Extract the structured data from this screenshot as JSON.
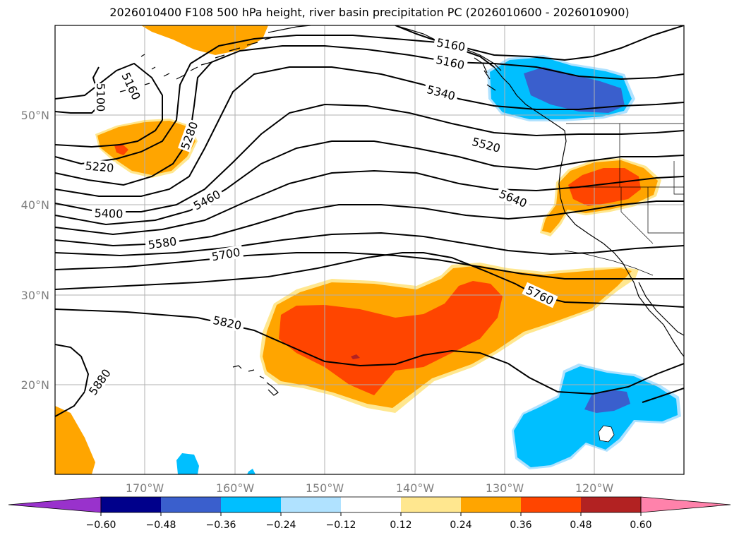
{
  "title": "2026010400 F108 500 hPa height, river basin precipitation PC (2026010600 - 2026010900)",
  "axes": {
    "lat_labels": [
      "50°N",
      "40°N",
      "30°N",
      "20°N"
    ],
    "lon_labels": [
      "170°W",
      "160°W",
      "150°W",
      "140°W",
      "130°W",
      "120°W"
    ]
  },
  "contour_labels": [
    "5100",
    "5160",
    "5160",
    "5160",
    "5220",
    "5280",
    "5340",
    "5400",
    "5460",
    "5520",
    "5580",
    "5640",
    "5700",
    "5760",
    "5820",
    "5880"
  ],
  "colorbar": {
    "ticks": [
      "−0.60",
      "−0.48",
      "−0.36",
      "−0.24",
      "−0.12",
      "0.12",
      "0.24",
      "0.36",
      "0.48",
      "0.60"
    ],
    "colors": [
      "#9932cc",
      "#00008b",
      "#3a5fcd",
      "#00bfff",
      "#b0e2ff",
      "#ffffff",
      "#ffe78f",
      "#ffa500",
      "#ff4500",
      "#b22222",
      "#ff82ab"
    ]
  },
  "colors": {
    "positive_0_24": "#ffa500",
    "positive_0_36": "#ff4500",
    "negative_0_24": "#00bfff",
    "negative_0_36": "#3a5fcd",
    "light_positive": "#ffe78f",
    "light_negative": "#b0e2ff"
  }
}
